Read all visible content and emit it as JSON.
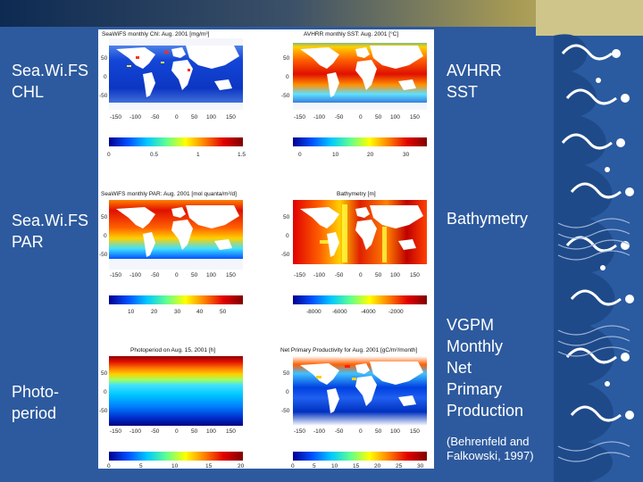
{
  "labels": {
    "seawifs_chl": "Sea.Wi.FS\nCHL",
    "avhrr_sst": "AVHRR\nSST",
    "seawifs_par": "Sea.Wi.FS\nPAR",
    "bathymetry": "Bathymetry",
    "photoperiod": "Photo-\nperiod",
    "vgpm": "VGPM\nMonthly\nNet\nPrimary\nProduction",
    "citation": "(Behrenfeld and\nFalkowski, 1997)"
  },
  "panels": {
    "chl": {
      "title": "SeaWiFS monthly Chl: Aug. 2001 [mg/m³]",
      "lat_ticks": [
        "50",
        "0",
        "-50"
      ],
      "lon_ticks": [
        "-150",
        "-100",
        "-50",
        "0",
        "50",
        "100",
        "150"
      ],
      "cbar_ticks": [
        "0",
        "0.5",
        "1",
        "1.5"
      ]
    },
    "sst": {
      "title": "AVHRR monthly SST: Aug. 2001 [°C]",
      "lat_ticks": [
        "50",
        "0",
        "-50"
      ],
      "lon_ticks": [
        "-150",
        "-100",
        "-50",
        "0",
        "50",
        "100",
        "150"
      ],
      "cbar_ticks": [
        "0",
        "10",
        "20",
        "30"
      ]
    },
    "par": {
      "title": "SeaWiFS monthly PAR: Aug. 2001 [mol quanta/m²/d]",
      "lat_ticks": [
        "50",
        "0",
        "-50"
      ],
      "lon_ticks": [
        "-150",
        "-100",
        "-50",
        "0",
        "50",
        "100",
        "150"
      ],
      "cbar_ticks": [
        "10",
        "20",
        "30",
        "40",
        "50"
      ]
    },
    "bathy": {
      "title": "Bathymetry [m]",
      "lat_ticks": [
        "50",
        "0",
        "-50"
      ],
      "lon_ticks": [
        "-150",
        "-100",
        "-50",
        "0",
        "50",
        "100",
        "150"
      ],
      "cbar_ticks": [
        "-8000",
        "-6000",
        "-4000",
        "-2000"
      ]
    },
    "photo": {
      "title": "Photoperiod on Aug. 15, 2001 [h]",
      "lat_ticks": [
        "50",
        "0",
        "-50"
      ],
      "lon_ticks": [
        "-150",
        "-100",
        "-50",
        "0",
        "50",
        "100",
        "150"
      ],
      "cbar_ticks": [
        "0",
        "5",
        "10",
        "15",
        "20"
      ]
    },
    "npp": {
      "title": "Net Primary Productivity for Aug. 2001 [gC/m²/month]",
      "lat_ticks": [
        "50",
        "0",
        "-50"
      ],
      "lon_ticks": [
        "-150",
        "-100",
        "-50",
        "0",
        "50",
        "100",
        "150"
      ],
      "cbar_ticks": [
        "0",
        "5",
        "10",
        "15",
        "20",
        "25",
        "30"
      ]
    }
  },
  "colors": {
    "slide_background": "#2d5a9e",
    "label_text": "#ffffff"
  }
}
